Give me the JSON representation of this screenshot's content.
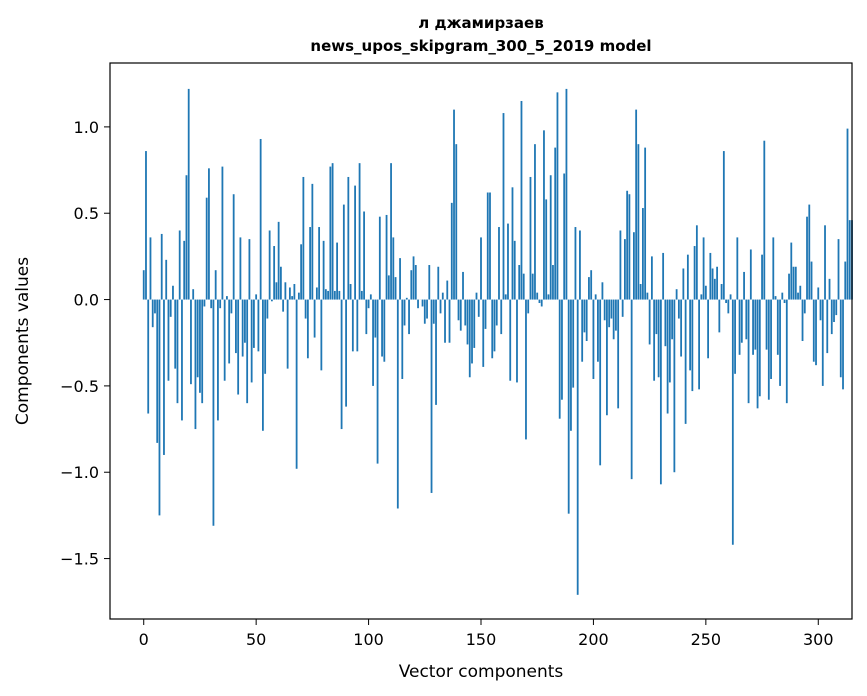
{
  "chart_data": {
    "type": "bar",
    "title": "л джамирзаев",
    "subtitle": "news_upos_skipgram_300_5_2019 model",
    "xlabel": "Vector components",
    "ylabel": "Components values",
    "xlim": [
      -15,
      315
    ],
    "ylim": [
      -1.85,
      1.37
    ],
    "xticks": [
      0,
      50,
      100,
      150,
      200,
      250,
      300
    ],
    "yticks": [
      -1.5,
      -1.0,
      -0.5,
      0.0,
      0.5,
      1.0
    ],
    "ytick_labels": [
      "−1.5",
      "−1.0",
      "−0.5",
      "0.0",
      "0.5",
      "1.0"
    ],
    "grid": false,
    "bar_color": "#1f77b4",
    "values": [
      0.17,
      0.86,
      -0.66,
      0.36,
      -0.16,
      -0.08,
      -0.83,
      -1.25,
      0.38,
      -0.9,
      0.23,
      -0.47,
      -0.1,
      0.08,
      -0.4,
      -0.6,
      0.4,
      -0.7,
      0.34,
      0.72,
      1.22,
      -0.49,
      0.06,
      -0.75,
      -0.45,
      -0.54,
      -0.6,
      -0.04,
      0.59,
      0.76,
      -0.05,
      -1.31,
      0.17,
      -0.7,
      -0.05,
      0.77,
      -0.47,
      0.02,
      -0.37,
      -0.08,
      0.61,
      -0.31,
      -0.55,
      0.36,
      -0.33,
      -0.25,
      -0.6,
      0.35,
      -0.48,
      -0.28,
      0.03,
      -0.3,
      0.93,
      -0.76,
      -0.43,
      -0.11,
      0.4,
      -0.01,
      0.31,
      0.1,
      0.45,
      0.19,
      -0.07,
      0.1,
      -0.4,
      0.07,
      0.02,
      0.09,
      -0.98,
      0.04,
      0.32,
      0.71,
      -0.11,
      -0.34,
      0.42,
      0.67,
      -0.22,
      0.07,
      0.42,
      -0.41,
      0.34,
      0.06,
      0.05,
      0.77,
      0.79,
      0.05,
      0.33,
      0.05,
      -0.75,
      0.55,
      -0.62,
      0.71,
      0.09,
      -0.3,
      0.66,
      -0.3,
      0.79,
      0.05,
      0.51,
      -0.2,
      -0.05,
      0.03,
      -0.5,
      -0.22,
      -0.95,
      0.48,
      -0.33,
      -0.36,
      0.49,
      0.14,
      0.79,
      0.36,
      0.13,
      -1.21,
      0.24,
      -0.46,
      -0.15,
      0.01,
      -0.2,
      0.17,
      0.25,
      0.2,
      -0.05,
      0.0,
      -0.04,
      -0.14,
      -0.11,
      0.2,
      -1.12,
      -0.14,
      -0.61,
      0.19,
      -0.08,
      0.04,
      -0.25,
      0.11,
      -0.25,
      0.56,
      1.1,
      0.9,
      -0.12,
      -0.18,
      0.16,
      -0.15,
      -0.26,
      -0.45,
      -0.37,
      -0.28,
      0.04,
      -0.1,
      0.36,
      -0.39,
      -0.17,
      0.62,
      0.62,
      -0.34,
      -0.3,
      -0.15,
      0.42,
      -0.2,
      1.08,
      0.03,
      0.44,
      -0.47,
      0.65,
      0.34,
      -0.48,
      0.2,
      1.15,
      0.15,
      -0.81,
      -0.08,
      0.71,
      0.15,
      0.9,
      0.04,
      -0.02,
      -0.04,
      0.98,
      0.58,
      0.03,
      0.72,
      0.2,
      0.88,
      1.2,
      -0.69,
      -0.58,
      0.73,
      1.22,
      -1.24,
      -0.76,
      -0.51,
      0.42,
      -1.71,
      0.4,
      -0.36,
      -0.19,
      -0.24,
      0.13,
      0.17,
      -0.46,
      0.03,
      -0.36,
      -0.96,
      0.1,
      -0.12,
      -0.67,
      -0.16,
      -0.11,
      -0.23,
      -0.18,
      -0.63,
      0.4,
      -0.1,
      0.35,
      0.63,
      0.61,
      -1.04,
      0.39,
      1.1,
      0.9,
      0.09,
      0.53,
      0.88,
      0.04,
      -0.26,
      0.25,
      -0.47,
      -0.2,
      -0.45,
      -1.07,
      0.27,
      -0.27,
      -0.66,
      -0.48,
      -0.23,
      -1.0,
      0.06,
      -0.11,
      -0.33,
      0.18,
      -0.72,
      0.26,
      -0.41,
      -0.53,
      0.31,
      0.43,
      -0.52,
      0.03,
      0.36,
      0.08,
      -0.34,
      0.27,
      0.18,
      0.12,
      0.19,
      -0.19,
      0.09,
      0.86,
      -0.02,
      -0.08,
      0.03,
      -1.42,
      -0.43,
      0.36,
      -0.32,
      -0.25,
      0.16,
      -0.23,
      -0.6,
      0.29,
      -0.32,
      -0.29,
      -0.63,
      -0.56,
      0.26,
      0.92,
      -0.29,
      -0.58,
      -0.46,
      0.36,
      0.02,
      -0.32,
      -0.5,
      0.04,
      -0.02,
      -0.6,
      0.15,
      0.33,
      0.19,
      0.19,
      0.04,
      0.08,
      -0.24,
      -0.08,
      0.48,
      0.55,
      0.22,
      -0.36,
      -0.38,
      0.07,
      -0.12,
      -0.5,
      0.43,
      -0.31,
      0.12,
      -0.2,
      -0.13,
      -0.09,
      0.35,
      -0.45,
      -0.52,
      0.22,
      0.99,
      0.46,
      0.46
    ]
  }
}
